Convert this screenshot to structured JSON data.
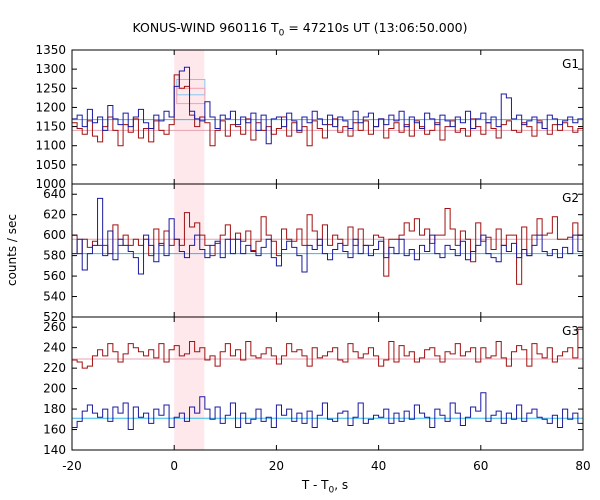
{
  "chart_data": {
    "type": "line",
    "title": {
      "prefix": "KONUS-WIND 960116 T",
      "sub": "0",
      "suffix": " = 47210s UT (13:06:50.000)"
    },
    "xlabel": {
      "prefix": "T - T",
      "sub": "0",
      "suffix": ", s"
    },
    "ylabel": "counts / sec",
    "xlim": [
      -20,
      80
    ],
    "xticks": [
      -20,
      0,
      20,
      40,
      60,
      80
    ],
    "highlight_interval": [
      0,
      5.9
    ],
    "bin_width": 1.0,
    "bins_start": -20,
    "colors": {
      "red": "#a01010",
      "blue": "#1a1aa0",
      "bg_red": "#e8a0b0",
      "bg_blue": "#30b8e8",
      "highlight": "#ffe8ec",
      "lightblue_box": "#80c8f0",
      "lightred_box": "#f0a0b0"
    },
    "panels": [
      {
        "label": "G1",
        "ylim": [
          1000,
          1350
        ],
        "yticks": [
          1000,
          1050,
          1100,
          1150,
          1200,
          1250,
          1300,
          1350
        ],
        "series": [
          {
            "color": "red",
            "values": [
              1160,
              1145,
              1130,
              1165,
              1125,
              1110,
              1150,
              1175,
              1140,
              1100,
              1155,
              1135,
              1170,
              1120,
              1145,
              1110,
              1165,
              1140,
              1130,
              1155,
              1285,
              1250,
              1255,
              1180,
              1150,
              1175,
              1160,
              1100,
              1140,
              1165,
              1125,
              1155,
              1150,
              1130,
              1170,
              1115,
              1160,
              1140,
              1150,
              1130,
              1145,
              1175,
              1125,
              1160,
              1135,
              1150,
              1100,
              1165,
              1145,
              1120,
              1155,
              1170,
              1135,
              1150,
              1125,
              1160,
              1140,
              1165,
              1130,
              1150,
              1170,
              1120,
              1145,
              1160,
              1135,
              1155,
              1125,
              1165,
              1150,
              1130,
              1140,
              1160,
              1115,
              1150,
              1165,
              1135,
              1145,
              1125,
              1170,
              1150,
              1130,
              1160,
              1145,
              1120,
              1155,
              1165,
              1140,
              1135,
              1160,
              1150,
              1125,
              1165,
              1145,
              1130,
              1155,
              1140,
              1160,
              1150,
              1135,
              1145
            ]
          },
          {
            "color": "blue",
            "values": [
              1170,
              1180,
              1150,
              1195,
              1160,
              1175,
              1140,
              1205,
              1170,
              1155,
              1185,
              1150,
              1175,
              1195,
              1160,
              1145,
              1180,
              1165,
              1190,
              1175,
              1255,
              1295,
              1305,
              1190,
              1170,
              1165,
              1215,
              1175,
              1145,
              1180,
              1170,
              1190,
              1155,
              1175,
              1160,
              1185,
              1140,
              1180,
              1105,
              1170,
              1175,
              1150,
              1185,
              1165,
              1140,
              1175,
              1160,
              1190,
              1170,
              1155,
              1180,
              1150,
              1175,
              1165,
              1145,
              1190,
              1160,
              1175,
              1185,
              1150,
              1170,
              1155,
              1180,
              1165,
              1190,
              1150,
              1175,
              1160,
              1145,
              1185,
              1170,
              1155,
              1180,
              1165,
              1150,
              1175,
              1160,
              1190,
              1145,
              1170,
              1185,
              1160,
              1175,
              1150,
              1235,
              1225,
              1170,
              1180,
              1155,
              1165,
              1175,
              1160,
              1145,
              1180,
              1170,
              1155,
              1165,
              1175,
              1160,
              1170
            ]
          }
        ],
        "backgrounds": [
          {
            "color": "bg_red",
            "y": 1140
          },
          {
            "color": "bg_blue",
            "y": 1168
          }
        ],
        "boxes": [
          {
            "color": "lightblue_box",
            "x0": 0.5,
            "x1": 6,
            "y": 1273
          },
          {
            "color": "lightred_box",
            "x0": 0.5,
            "x1": 6,
            "y": 1250
          }
        ]
      },
      {
        "label": "G2",
        "ylim": [
          520,
          650
        ],
        "yticks": [
          520,
          540,
          560,
          580,
          600,
          620,
          640
        ],
        "series": [
          {
            "color": "red",
            "values": [
              600,
              582,
              596,
              588,
              594,
              590,
              590,
              582,
              610,
              590,
              600,
              590,
              596,
              590,
              596,
              580,
              606,
              590,
              604,
              590,
              596,
              590,
              622,
              608,
              612,
              600,
              590,
              580,
              592,
              600,
              610,
              596,
              602,
              594,
              604,
              585,
              594,
              618,
              600,
              594,
              580,
              606,
              596,
              594,
              606,
              590,
              620,
              604,
              590,
              610,
              590,
              600,
              596,
              590,
              608,
              590,
              606,
              590,
              590,
              600,
              598,
              560,
              596,
              596,
              600,
              612,
              604,
              616,
              600,
              606,
              592,
              600,
              600,
              626,
              606,
              590,
              604,
              596,
              574,
              612,
              594,
              598,
              586,
              606,
              590,
              600,
              600,
              552,
              608,
              580,
              600,
              616,
              600,
              602,
              618,
              596,
              596,
              598,
              612,
              600
            ]
          },
          {
            "color": "blue",
            "values": [
              582,
              596,
              566,
              582,
              590,
              636,
              580,
              604,
              576,
              596,
              590,
              584,
              578,
              562,
              600,
              590,
              574,
              592,
              580,
              616,
              596,
              584,
              578,
              590,
              600,
              586,
              578,
              590,
              594,
              578,
              596,
              582,
              596,
              582,
              590,
              584,
              580,
              588,
              596,
              578,
              570,
              586,
              594,
              588,
              580,
              564,
              590,
              586,
              596,
              582,
              576,
              586,
              592,
              584,
              578,
              596,
              582,
              590,
              580,
              586,
              594,
              578,
              588,
              582,
              596,
              580,
              586,
              576,
              590,
              584,
              600,
              582,
              578,
              590,
              586,
              580,
              594,
              576,
              584,
              590,
              600,
              582,
              578,
              574,
              590,
              584,
              592,
              578,
              586,
              580,
              590,
              600,
              584,
              580,
              586,
              578,
              588,
              582,
              600,
              584
            ]
          }
        ],
        "backgrounds": [
          {
            "color": "bg_red",
            "y": 596
          },
          {
            "color": "bg_blue",
            "y": 582
          }
        ],
        "boxes": []
      },
      {
        "label": "G3",
        "ylim": [
          140,
          270
        ],
        "yticks": [
          140,
          160,
          180,
          200,
          220,
          240,
          260
        ],
        "series": [
          {
            "color": "red",
            "values": [
              228,
              226,
              220,
              222,
              232,
              238,
              232,
              244,
              236,
              226,
              234,
              244,
              240,
              236,
              232,
              238,
              230,
              244,
              226,
              238,
              242,
              232,
              234,
              246,
              236,
              240,
              228,
              232,
              222,
              236,
              244,
              232,
              238,
              228,
              246,
              232,
              230,
              234,
              240,
              232,
              224,
              232,
              244,
              236,
              238,
              232,
              222,
              240,
              230,
              232,
              236,
              240,
              228,
              226,
              244,
              236,
              230,
              234,
              240,
              232,
              222,
              228,
              246,
              226,
              242,
              232,
              236,
              226,
              230,
              238,
              240,
              232,
              226,
              236,
              234,
              244,
              232,
              236,
              240,
              226,
              240,
              230,
              232,
              246,
              230,
              222,
              236,
              242,
              238,
              222,
              244,
              234,
              230,
              240,
              226,
              232,
              236,
              240,
              230,
              258
            ]
          },
          {
            "color": "blue",
            "values": [
              162,
              168,
              178,
              184,
              176,
              172,
              180,
              168,
              182,
              176,
              186,
              160,
              182,
              172,
              176,
              166,
              180,
              174,
              184,
              162,
              172,
              176,
              168,
              182,
              176,
              192,
              180,
              170,
              182,
              166,
              174,
              186,
              162,
              176,
              166,
              170,
              180,
              168,
              172,
              162,
              184,
              174,
              180,
              168,
              176,
              166,
              178,
              162,
              174,
              186,
              170,
              168,
              176,
              178,
              164,
              172,
              186,
              166,
              170,
              174,
              172,
              180,
              166,
              176,
              168,
              178,
              170,
              184,
              176,
              172,
              162,
              180,
              174,
              168,
              186,
              176,
              164,
              172,
              182,
              178,
              196,
              168,
              174,
              178,
              166,
              176,
              170,
              184,
              168,
              176,
              180,
              172,
              170,
              166,
              174,
              162,
              180,
              170,
              176,
              166
            ]
          }
        ],
        "backgrounds": [
          {
            "color": "bg_red",
            "y": 229
          },
          {
            "color": "bg_blue",
            "y": 171
          }
        ],
        "boxes": []
      }
    ]
  }
}
